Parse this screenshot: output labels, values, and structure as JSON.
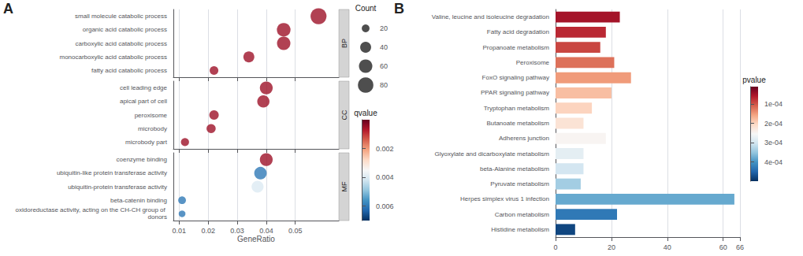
{
  "chart_data": [
    {
      "type": "scatter",
      "title": "A",
      "annotations": [
        "BP"
      ],
      "categories": [
        "small molecule catabolic process",
        "organic acid catabolic process",
        "carboxylic acid catabolic process",
        "monocarboxylic acid catabolic process",
        "fatty acid catabolic process"
      ],
      "x": [
        0.058,
        0.046,
        0.046,
        0.034,
        0.022
      ],
      "sizes": [
        85,
        62,
        60,
        40,
        25
      ],
      "color_values": [
        0.0005,
        0.0005,
        0.0005,
        0.0005,
        0.0005
      ],
      "xlim": [
        0.008,
        0.065
      ],
      "xticks": [
        0.01,
        0.02,
        0.03,
        0.04,
        0.05
      ],
      "grid": true,
      "tick_labels": "y",
      "size_legend": {
        "title": "Count",
        "values": [
          20,
          40,
          60,
          80
        ]
      },
      "colorbar": {
        "title": "qvalue",
        "range": [
          0.0,
          0.007
        ],
        "ticks": [
          0.002,
          0.004,
          0.006
        ]
      }
    },
    {
      "type": "scatter",
      "annotations": [
        "CC"
      ],
      "categories": [
        "cell leading edge",
        "apical part of cell",
        "peroxisome",
        "microbody",
        "microbody part"
      ],
      "x": [
        0.04,
        0.039,
        0.022,
        0.021,
        0.012
      ],
      "sizes": [
        55,
        50,
        30,
        28,
        22
      ],
      "color_values": [
        0.0005,
        0.0005,
        0.0005,
        0.0005,
        0.0005
      ],
      "xlim": [
        0.008,
        0.065
      ],
      "xticks": [
        0.01,
        0.02,
        0.03,
        0.04,
        0.05
      ],
      "grid": true,
      "tick_labels": "y"
    },
    {
      "type": "scatter",
      "annotations": [
        "MF"
      ],
      "xlabel": "GeneRatio",
      "categories": [
        "coenzyme binding",
        "ubiquitin-like protein transferase activity",
        "ubiquitin-protein transferase activity",
        "beta-catenin binding",
        "oxidoreductase activity, acting on the CH-CH group of donors"
      ],
      "x": [
        0.04,
        0.038,
        0.037,
        0.011,
        0.011
      ],
      "sizes": [
        55,
        52,
        48,
        20,
        15
      ],
      "color_values": [
        0.0005,
        0.006,
        0.004,
        0.006,
        0.006
      ],
      "xlim": [
        0.008,
        0.065
      ],
      "xticks": [
        0.01,
        0.02,
        0.03,
        0.04,
        0.05
      ],
      "grid": true
    },
    {
      "type": "bar",
      "title": "B",
      "orientation": "horizontal",
      "categories": [
        "Valine, leucine and isoleucine degradation",
        "Fatty acid degradation",
        "Propanoate metabolism",
        "Peroxisome",
        "FoxO signaling pathway",
        "PPAR signaling pathway",
        "Tryptophan metabolism",
        "Butanoate metabolism",
        "Adherens junction",
        "Glyoxylate and dicarboxylate metabolism",
        "beta-Alanine metabolism",
        "Pyruvate metabolism",
        "Herpes simplex virus 1 infection",
        "Carbon metabolism",
        "Histidine metabolism"
      ],
      "values": [
        23,
        18,
        16,
        21,
        27,
        20,
        13,
        10,
        18,
        10,
        10,
        9,
        64,
        22,
        7
      ],
      "color_values": [
        5e-05,
        7e-05,
        9e-05,
        0.00012,
        0.00015,
        0.00018,
        0.0002,
        0.00022,
        0.00025,
        0.00028,
        0.0003,
        0.00034,
        0.00038,
        0.00043,
        0.00048
      ],
      "xlim": [
        0,
        66
      ],
      "xticks": [
        0,
        20,
        40,
        60
      ],
      "grid": true,
      "colorbar": {
        "title": "pvalue",
        "range": [
          1e-05,
          0.0005
        ],
        "ticks": [
          {
            "value": 0.0001,
            "label": "1e-04"
          },
          {
            "value": 0.0002,
            "label": "2e-04"
          },
          {
            "value": 0.0003,
            "label": "3e-04"
          },
          {
            "value": 0.0004,
            "label": "4e-04"
          }
        ]
      }
    }
  ]
}
